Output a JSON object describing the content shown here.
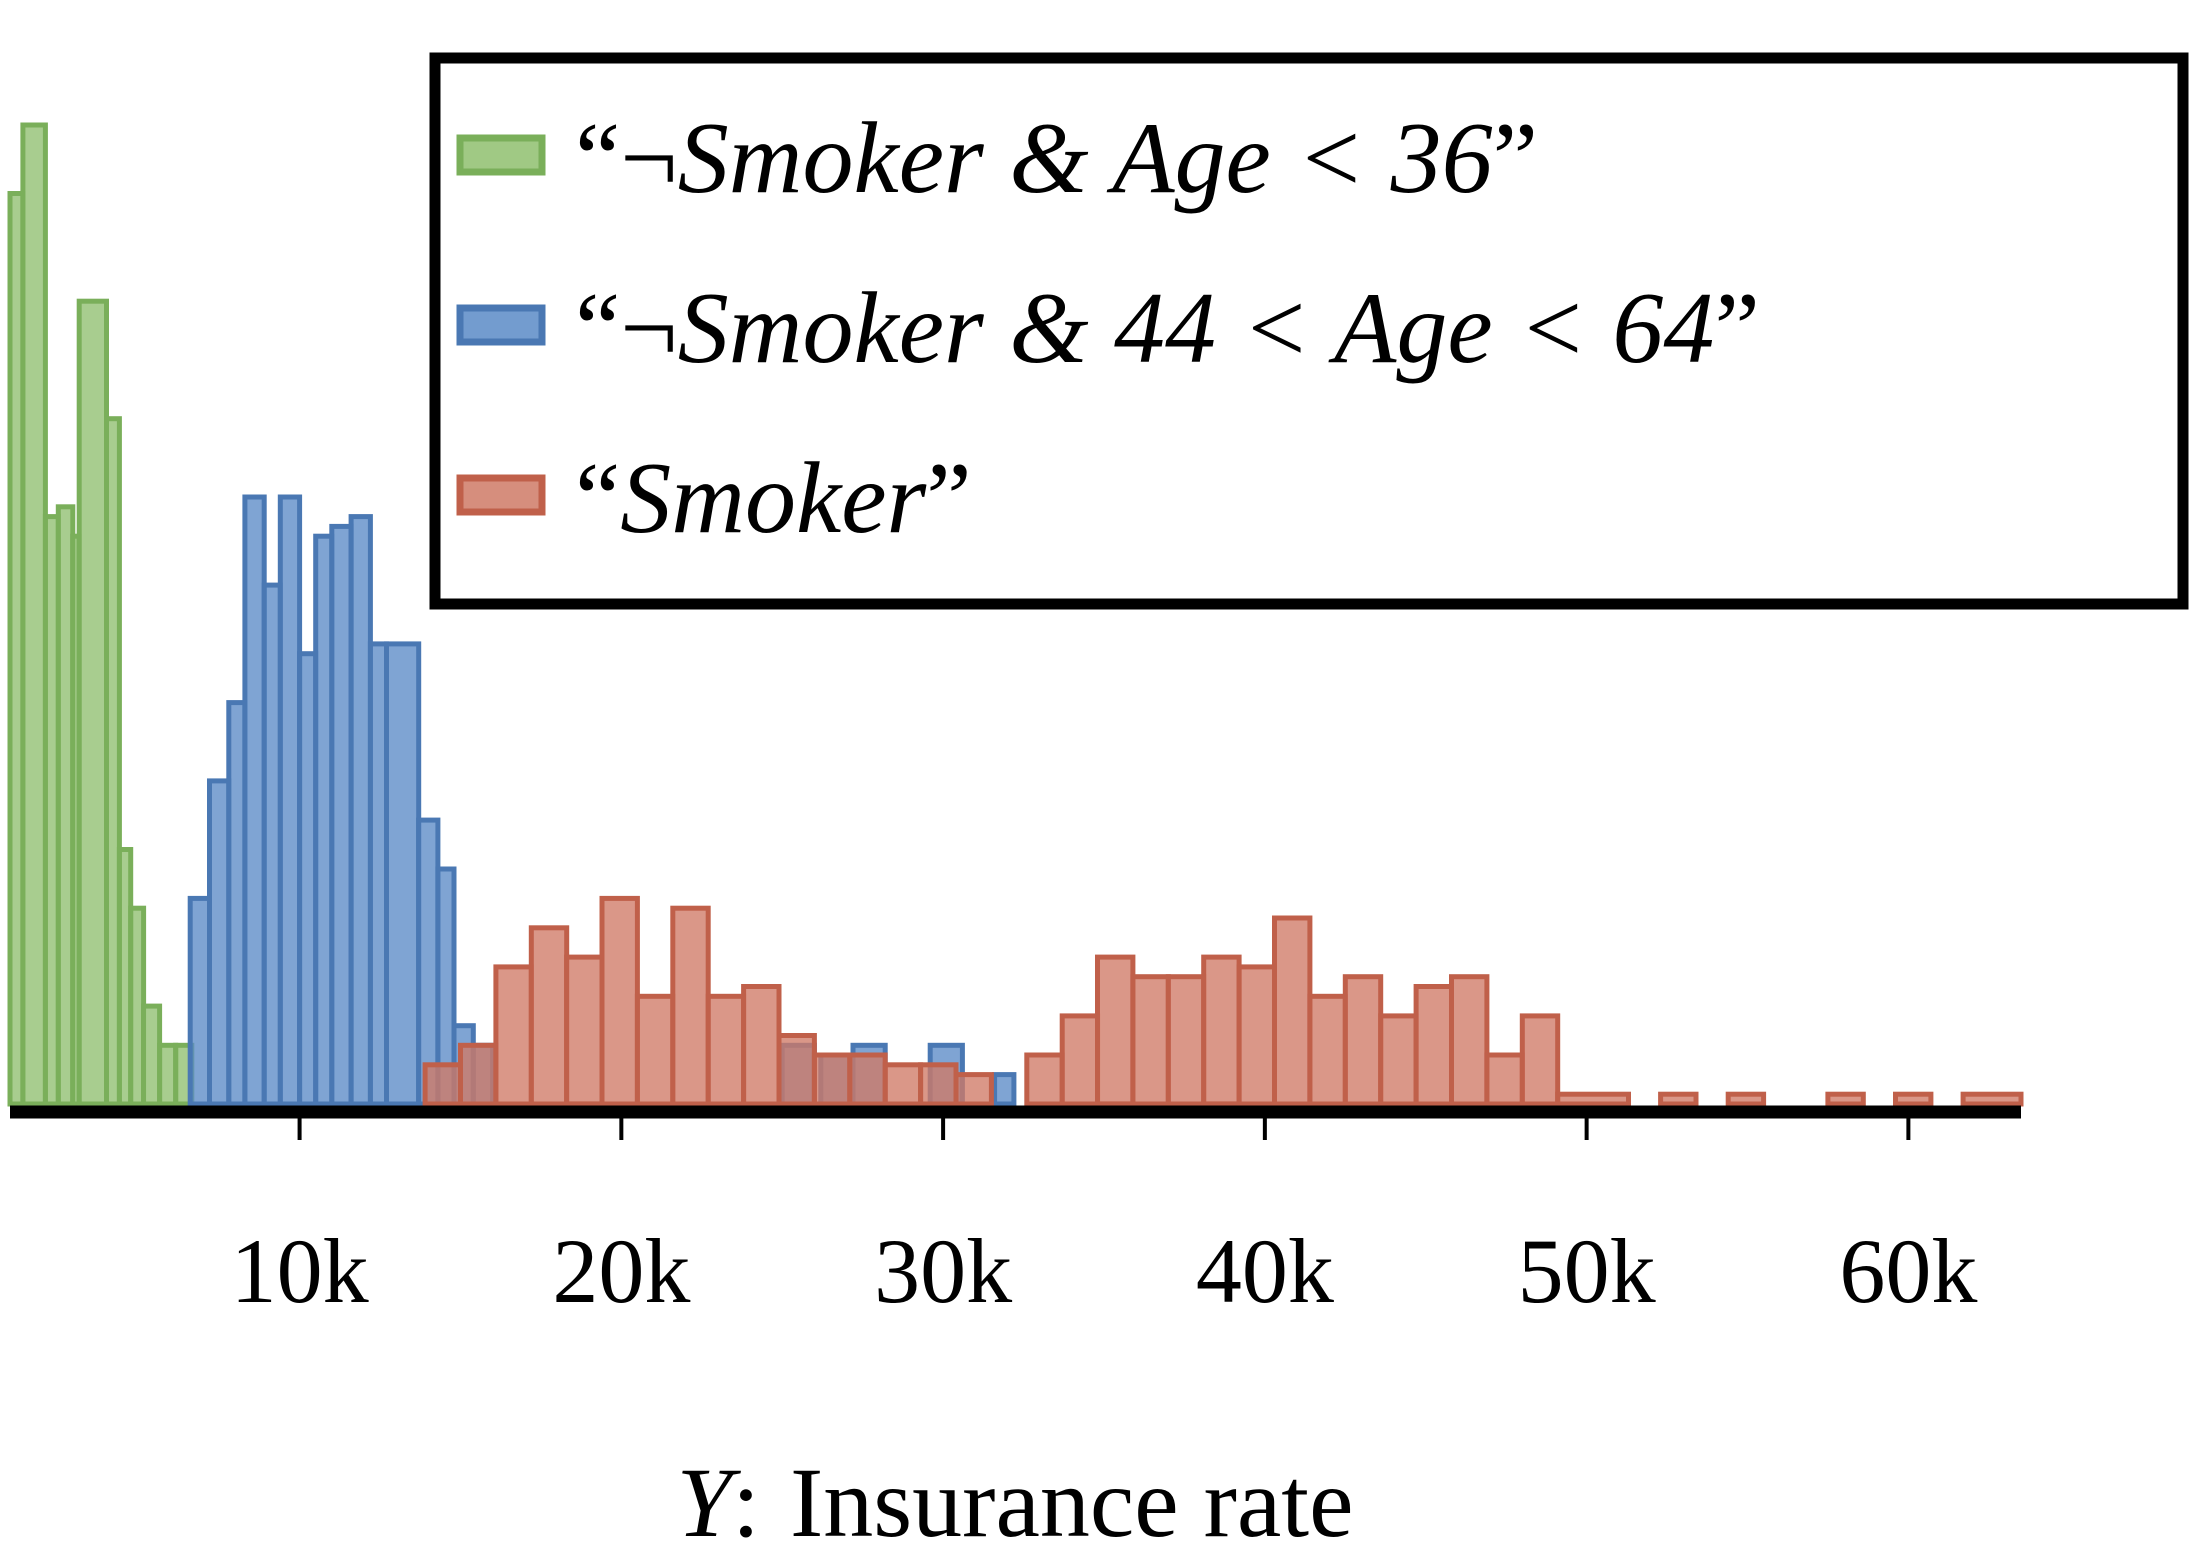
{
  "chart_data": {
    "type": "histogram",
    "title": "",
    "xlabel_var": "Y",
    "xlabel_sep": ":",
    "xlabel_text": "Insurance rate",
    "xlim": [
      1000,
      63500
    ],
    "ylim": [
      0,
      1
    ],
    "y_axis_shown": false,
    "grid": false,
    "legend_placement": "top-right",
    "bin_width": 1100,
    "x_ticks": [
      10000,
      20000,
      30000,
      40000,
      50000,
      60000
    ],
    "x_tick_labels": [
      "10k",
      "20k",
      "30k",
      "40k",
      "50k",
      "60k"
    ],
    "series": [
      {
        "id": "young",
        "name_open": "“¬",
        "name_ital": "Smoker & Age < 36",
        "name_close": "”",
        "color": "#8fbf6f",
        "edge": "#7aaf5a",
        "bins": [
          {
            "x0": 1000,
            "x1": 1400,
            "y": 0.93
          },
          {
            "x0": 1400,
            "x1": 2100,
            "y": 1.0
          },
          {
            "x0": 2100,
            "x1": 2500,
            "y": 0.6
          },
          {
            "x0": 2500,
            "x1": 2950,
            "y": 0.61
          },
          {
            "x0": 2950,
            "x1": 3150,
            "y": 0.58
          },
          {
            "x0": 3150,
            "x1": 4000,
            "y": 0.82
          },
          {
            "x0": 4000,
            "x1": 4400,
            "y": 0.7
          },
          {
            "x0": 4400,
            "x1": 4750,
            "y": 0.26
          },
          {
            "x0": 4750,
            "x1": 5150,
            "y": 0.2
          },
          {
            "x0": 5150,
            "x1": 5650,
            "y": 0.1
          },
          {
            "x0": 5650,
            "x1": 6150,
            "y": 0.06
          },
          {
            "x0": 6150,
            "x1": 6650,
            "y": 0.06
          }
        ]
      },
      {
        "id": "older",
        "name_open": "“¬",
        "name_ital": "Smoker & 44 < Age < 64",
        "name_close": "”",
        "color": "#5b8bc7",
        "edge": "#4a78b3",
        "bins": [
          {
            "x0": 6600,
            "x1": 7200,
            "y": 0.21
          },
          {
            "x0": 7200,
            "x1": 7800,
            "y": 0.33
          },
          {
            "x0": 7800,
            "x1": 8300,
            "y": 0.41
          },
          {
            "x0": 8300,
            "x1": 8900,
            "y": 0.62
          },
          {
            "x0": 8900,
            "x1": 9400,
            "y": 0.53
          },
          {
            "x0": 9400,
            "x1": 10000,
            "y": 0.62
          },
          {
            "x0": 10000,
            "x1": 10500,
            "y": 0.46
          },
          {
            "x0": 10500,
            "x1": 11000,
            "y": 0.58
          },
          {
            "x0": 11000,
            "x1": 11600,
            "y": 0.59
          },
          {
            "x0": 11600,
            "x1": 12200,
            "y": 0.6
          },
          {
            "x0": 12200,
            "x1": 12700,
            "y": 0.47
          },
          {
            "x0": 12700,
            "x1": 13700,
            "y": 0.47
          },
          {
            "x0": 13700,
            "x1": 14300,
            "y": 0.29
          },
          {
            "x0": 14300,
            "x1": 14800,
            "y": 0.24
          },
          {
            "x0": 14800,
            "x1": 15400,
            "y": 0.08
          },
          {
            "x0": 15400,
            "x1": 16000,
            "y": 0.06
          },
          {
            "x0": 25000,
            "x1": 26000,
            "y": 0.06
          },
          {
            "x0": 26200,
            "x1": 27200,
            "y": 0.05
          },
          {
            "x0": 27200,
            "x1": 28200,
            "y": 0.06
          },
          {
            "x0": 29600,
            "x1": 30600,
            "y": 0.06
          },
          {
            "x0": 31600,
            "x1": 32200,
            "y": 0.03
          }
        ]
      },
      {
        "id": "smoker",
        "name_open": "“",
        "name_ital": "Smoker",
        "name_close": "”",
        "color": "#cf7a66",
        "edge": "#c0604a",
        "bins": [
          {
            "x0": 13900,
            "x1": 15000,
            "y": 0.04
          },
          {
            "x0": 15000,
            "x1": 16100,
            "y": 0.06
          },
          {
            "x0": 16100,
            "x1": 17200,
            "y": 0.14
          },
          {
            "x0": 17200,
            "x1": 18300,
            "y": 0.18
          },
          {
            "x0": 18300,
            "x1": 19400,
            "y": 0.15
          },
          {
            "x0": 19400,
            "x1": 20500,
            "y": 0.21
          },
          {
            "x0": 20500,
            "x1": 21600,
            "y": 0.11
          },
          {
            "x0": 21600,
            "x1": 22700,
            "y": 0.2
          },
          {
            "x0": 22700,
            "x1": 23800,
            "y": 0.11
          },
          {
            "x0": 23800,
            "x1": 24900,
            "y": 0.12
          },
          {
            "x0": 24900,
            "x1": 26000,
            "y": 0.07
          },
          {
            "x0": 26000,
            "x1": 27100,
            "y": 0.05
          },
          {
            "x0": 27100,
            "x1": 28200,
            "y": 0.05
          },
          {
            "x0": 28200,
            "x1": 29300,
            "y": 0.04
          },
          {
            "x0": 29300,
            "x1": 30400,
            "y": 0.04
          },
          {
            "x0": 30400,
            "x1": 31500,
            "y": 0.03
          },
          {
            "x0": 32600,
            "x1": 33700,
            "y": 0.05
          },
          {
            "x0": 33700,
            "x1": 34800,
            "y": 0.09
          },
          {
            "x0": 34800,
            "x1": 35900,
            "y": 0.15
          },
          {
            "x0": 35900,
            "x1": 37000,
            "y": 0.13
          },
          {
            "x0": 37000,
            "x1": 38100,
            "y": 0.13
          },
          {
            "x0": 38100,
            "x1": 39200,
            "y": 0.15
          },
          {
            "x0": 39200,
            "x1": 40300,
            "y": 0.14
          },
          {
            "x0": 40300,
            "x1": 41400,
            "y": 0.19
          },
          {
            "x0": 41400,
            "x1": 42500,
            "y": 0.11
          },
          {
            "x0": 42500,
            "x1": 43600,
            "y": 0.13
          },
          {
            "x0": 43600,
            "x1": 44700,
            "y": 0.09
          },
          {
            "x0": 44700,
            "x1": 45800,
            "y": 0.12
          },
          {
            "x0": 45800,
            "x1": 46900,
            "y": 0.13
          },
          {
            "x0": 46900,
            "x1": 48000,
            "y": 0.05
          },
          {
            "x0": 48000,
            "x1": 49100,
            "y": 0.09
          },
          {
            "x0": 49100,
            "x1": 51300,
            "y": 0.01
          },
          {
            "x0": 52300,
            "x1": 53400,
            "y": 0.01
          },
          {
            "x0": 54400,
            "x1": 55500,
            "y": 0.01
          },
          {
            "x0": 57500,
            "x1": 58600,
            "y": 0.01
          },
          {
            "x0": 59600,
            "x1": 60700,
            "y": 0.01
          },
          {
            "x0": 61700,
            "x1": 63500,
            "y": 0.01
          }
        ]
      }
    ]
  }
}
